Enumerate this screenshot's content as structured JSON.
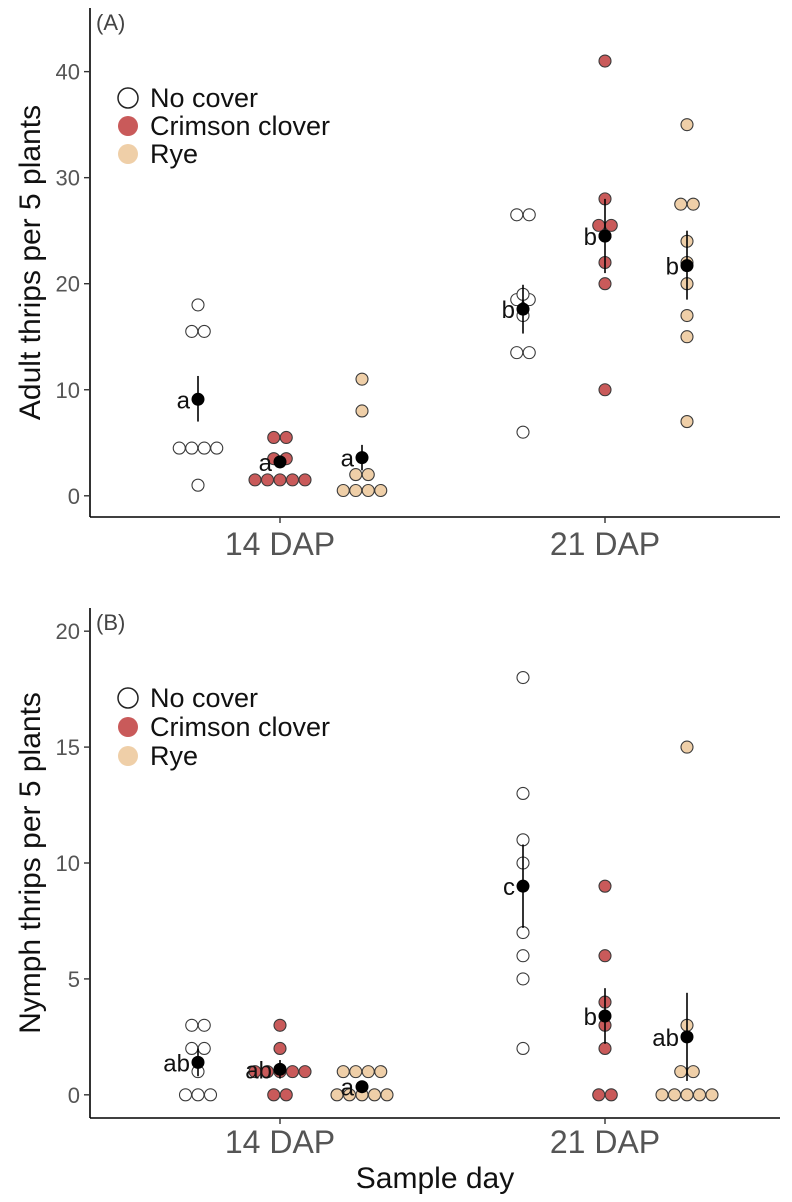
{
  "chart_data": [
    {
      "type": "scatter",
      "panel_label": "(A)",
      "ylabel": "Adult thrips per 5 plants",
      "xlabel": "",
      "categories": [
        "14 DAP",
        "21 DAP"
      ],
      "ylim": [
        -2,
        46
      ],
      "yticks": [
        0,
        10,
        20,
        30,
        40
      ],
      "grid": false,
      "legend": {
        "placement": "top-left",
        "entries": [
          {
            "label": "No cover",
            "color": "#ffffff"
          },
          {
            "label": "Crimson clover",
            "color": "#c95a5a"
          },
          {
            "label": "Rye",
            "color": "#efcfa8"
          }
        ]
      },
      "series": [
        {
          "name": "No cover",
          "color": "#ffffff",
          "groups": [
            {
              "category": "14 DAP",
              "points": [
                1,
                4.5,
                4.5,
                4.5,
                4.5,
                15.5,
                15.5,
                18
              ],
              "mean": 9.1,
              "err_low": 7,
              "err_high": 11.3,
              "letter": "a"
            },
            {
              "category": "21 DAP",
              "points": [
                6,
                13.5,
                13.5,
                17,
                18.5,
                18.5,
                19,
                26.5,
                26.5
              ],
              "mean": 17.6,
              "err_low": 15.3,
              "err_high": 19.9,
              "letter": "b"
            }
          ]
        },
        {
          "name": "Crimson clover",
          "color": "#c95a5a",
          "groups": [
            {
              "category": "14 DAP",
              "points": [
                1.5,
                1.5,
                1.5,
                1.5,
                1.5,
                3.5,
                3.5,
                5.5,
                5.5
              ],
              "mean": 3.2,
              "err_low": 2.6,
              "err_high": 3.8,
              "letter": "a"
            },
            {
              "category": "21 DAP",
              "points": [
                10,
                20,
                22,
                24.5,
                25.5,
                25.5,
                28,
                41
              ],
              "mean": 24.5,
              "err_low": 21,
              "err_high": 28,
              "letter": "b"
            }
          ]
        },
        {
          "name": "Rye",
          "color": "#efcfa8",
          "groups": [
            {
              "category": "14 DAP",
              "points": [
                0.5,
                0.5,
                0.5,
                0.5,
                2,
                2,
                8,
                11
              ],
              "mean": 3.6,
              "err_low": 2.4,
              "err_high": 4.8,
              "letter": "a"
            },
            {
              "category": "21 DAP",
              "points": [
                7,
                15,
                17,
                20,
                22,
                24,
                27.5,
                27.5,
                35
              ],
              "mean": 21.7,
              "err_low": 18.5,
              "err_high": 25,
              "letter": "b"
            }
          ]
        }
      ]
    },
    {
      "type": "scatter",
      "panel_label": "(B)",
      "ylabel": "Nymph thrips per 5 plants",
      "xlabel": "Sample day",
      "categories": [
        "14 DAP",
        "21 DAP"
      ],
      "ylim": [
        -1,
        21
      ],
      "yticks": [
        0,
        5,
        10,
        15,
        20
      ],
      "grid": false,
      "legend": {
        "placement": "top-left",
        "entries": [
          {
            "label": "No cover",
            "color": "#ffffff"
          },
          {
            "label": "Crimson clover",
            "color": "#c95a5a"
          },
          {
            "label": "Rye",
            "color": "#efcfa8"
          }
        ]
      },
      "series": [
        {
          "name": "No cover",
          "color": "#ffffff",
          "groups": [
            {
              "category": "14 DAP",
              "points": [
                0,
                0,
                0,
                1,
                2,
                2,
                3,
                3
              ],
              "mean": 1.4,
              "err_low": 0.8,
              "err_high": 2,
              "letter": "ab"
            },
            {
              "category": "21 DAP",
              "points": [
                2,
                5,
                6,
                7,
                10,
                11,
                13,
                18
              ],
              "mean": 9,
              "err_low": 7.2,
              "err_high": 10.8,
              "letter": "c"
            }
          ]
        },
        {
          "name": "Crimson clover",
          "color": "#c95a5a",
          "groups": [
            {
              "category": "14 DAP",
              "points": [
                0,
                0,
                1,
                1,
                1,
                1,
                1,
                2,
                3
              ],
              "mean": 1.1,
              "err_low": 0.7,
              "err_high": 1.5,
              "letter": "ab"
            },
            {
              "category": "21 DAP",
              "points": [
                0,
                0,
                2,
                3,
                4,
                6,
                9
              ],
              "mean": 3.4,
              "err_low": 2.2,
              "err_high": 4.6,
              "letter": "b"
            }
          ]
        },
        {
          "name": "Rye",
          "color": "#efcfa8",
          "groups": [
            {
              "category": "14 DAP",
              "points": [
                0,
                0,
                0,
                0,
                0,
                1,
                1,
                1,
                1
              ],
              "mean": 0.35,
              "err_low": 0.1,
              "err_high": 0.6,
              "letter": "a"
            },
            {
              "category": "21 DAP",
              "points": [
                0,
                0,
                0,
                0,
                0,
                1,
                1,
                3,
                15
              ],
              "mean": 2.5,
              "err_low": 0.6,
              "err_high": 4.4,
              "letter": "ab"
            }
          ]
        }
      ]
    }
  ]
}
